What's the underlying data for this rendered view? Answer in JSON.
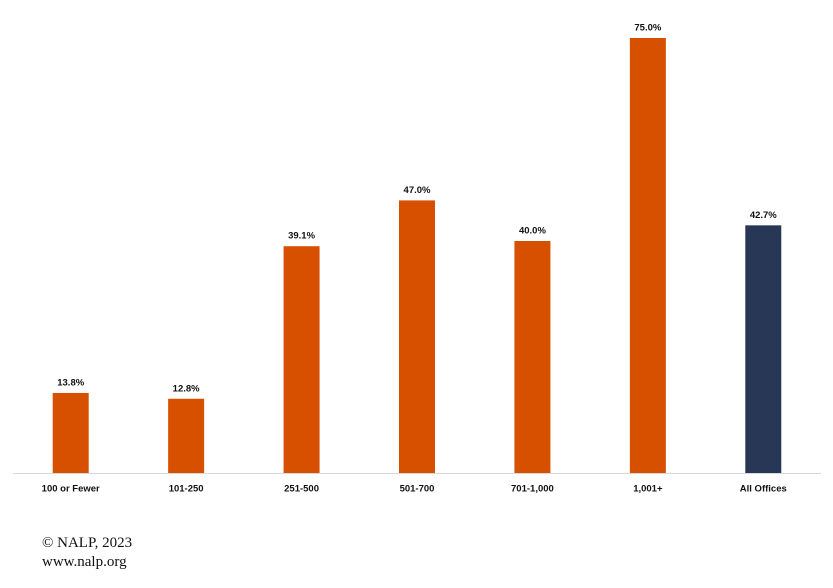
{
  "chart_data": {
    "type": "bar",
    "categories": [
      "100 or Fewer",
      "101-250",
      "251-500",
      "501-700",
      "701-1,000",
      "1,001+",
      "All Offices"
    ],
    "values": [
      13.8,
      12.8,
      39.1,
      47.0,
      40.0,
      75.0,
      42.7
    ],
    "value_labels": [
      "13.8%",
      "12.8%",
      "39.1%",
      "47.0%",
      "40.0%",
      "75.0%",
      "42.7%"
    ],
    "colors": [
      "#d65000",
      "#d65000",
      "#d65000",
      "#d65000",
      "#d65000",
      "#d65000",
      "#293756"
    ],
    "ylim": [
      0,
      75
    ],
    "notes": [
      "© NALP, 2023",
      "www.nalp.org"
    ]
  }
}
